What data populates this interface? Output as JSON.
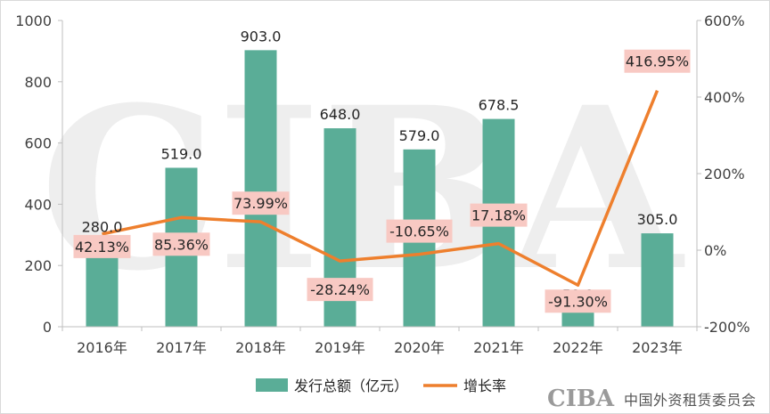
{
  "chart_data": {
    "type": "bar",
    "categories": [
      "2016年",
      "2017年",
      "2018年",
      "2019年",
      "2020年",
      "2021年",
      "2022年",
      "2023年"
    ],
    "series": [
      {
        "name": "发行总额（亿元）",
        "type": "bar",
        "axis": "left",
        "values": [
          280.0,
          519.0,
          903.0,
          648.0,
          579.0,
          678.5,
          59.0,
          305.0
        ],
        "labels": [
          "280.0",
          "519.0",
          "903.0",
          "648.0",
          "579.0",
          "678.5",
          "59.0",
          "305.0"
        ],
        "color": "#5aad97"
      },
      {
        "name": "增长率",
        "type": "line",
        "axis": "right",
        "values": [
          42.13,
          85.36,
          73.99,
          -28.24,
          -10.65,
          17.18,
          -91.3,
          416.95
        ],
        "labels": [
          "42.13%",
          "85.36%",
          "73.99%",
          "-28.24%",
          "-10.65%",
          "17.18%",
          "-91.30%",
          "416.95%"
        ],
        "color": "#ee7f2d"
      }
    ],
    "y_left": {
      "min": 0,
      "max": 1000,
      "ticks": [
        "0",
        "200",
        "400",
        "600",
        "800",
        "1000"
      ]
    },
    "y_right": {
      "min": -200,
      "max": 600,
      "ticks": [
        "-200%",
        "0%",
        "200%",
        "400%",
        "600%"
      ]
    },
    "grid": false,
    "legend_position": "bottom"
  },
  "colors": {
    "label_box": "#f8c9c3",
    "axis": "#bfbfbf",
    "watermark": "#eeeeee"
  },
  "watermark": {
    "text": "CIBA"
  },
  "logo": {
    "mark": "CIBA",
    "text": "中国外资租赁委员会"
  }
}
